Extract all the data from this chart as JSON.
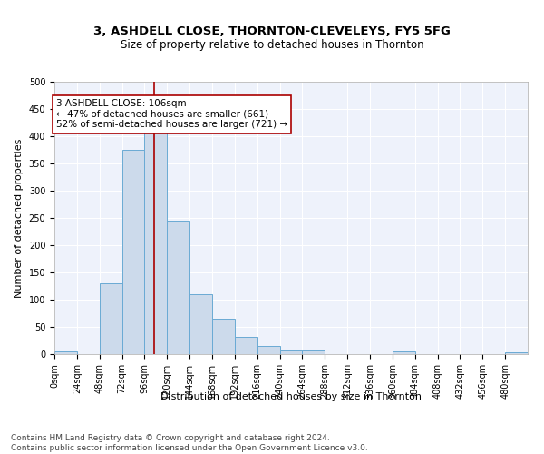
{
  "title": "3, ASHDELL CLOSE, THORNTON-CLEVELEYS, FY5 5FG",
  "subtitle": "Size of property relative to detached houses in Thornton",
  "xlabel": "Distribution of detached houses by size in Thornton",
  "ylabel": "Number of detached properties",
  "bar_color": "#ccdaeb",
  "bar_edge_color": "#6aaad4",
  "bg_color": "#eef2fb",
  "grid_color": "#ffffff",
  "annotation_line_color": "#aa0000",
  "annotation_box_color": "#aa0000",
  "annotation_text": "3 ASHDELL CLOSE: 106sqm\n← 47% of detached houses are smaller (661)\n52% of semi-detached houses are larger (721) →",
  "property_size": 106,
  "bin_edges": [
    0,
    24,
    48,
    72,
    96,
    120,
    144,
    168,
    192,
    216,
    240,
    264,
    288,
    312,
    336,
    360,
    384,
    408,
    432,
    456,
    480,
    504
  ],
  "counts": [
    5,
    0,
    130,
    375,
    415,
    245,
    110,
    65,
    32,
    15,
    7,
    6,
    0,
    0,
    0,
    5,
    0,
    0,
    0,
    0,
    3
  ],
  "xlim": [
    0,
    504
  ],
  "ylim": [
    0,
    500
  ],
  "yticks": [
    0,
    50,
    100,
    150,
    200,
    250,
    300,
    350,
    400,
    450,
    500
  ],
  "xtick_labels": [
    "0sqm",
    "24sqm",
    "48sqm",
    "72sqm",
    "96sqm",
    "120sqm",
    "144sqm",
    "168sqm",
    "192sqm",
    "216sqm",
    "240sqm",
    "264sqm",
    "288sqm",
    "312sqm",
    "336sqm",
    "360sqm",
    "384sqm",
    "408sqm",
    "432sqm",
    "456sqm",
    "480sqm"
  ],
  "footnote": "Contains HM Land Registry data © Crown copyright and database right 2024.\nContains public sector information licensed under the Open Government Licence v3.0.",
  "title_fontsize": 9.5,
  "subtitle_fontsize": 8.5,
  "axis_label_fontsize": 8,
  "tick_fontsize": 7,
  "annotation_fontsize": 7.5,
  "footnote_fontsize": 6.5
}
